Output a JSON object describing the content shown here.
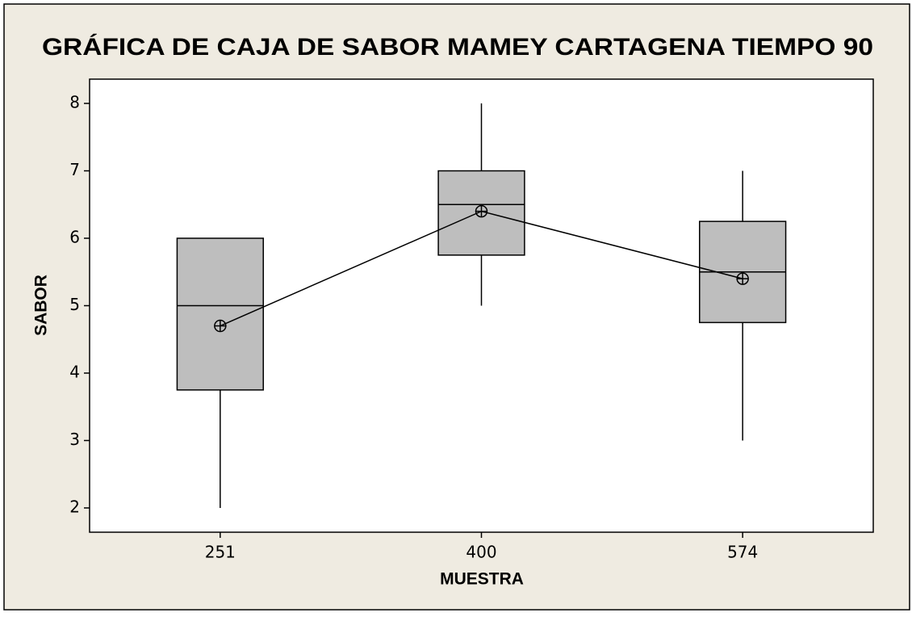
{
  "chart_data": {
    "type": "box",
    "title": "GRÁFICA DE CAJA DE SABOR MAMEY CARTAGENA TIEMPO 90",
    "x_label": "MUESTRA",
    "y_label": "SABOR",
    "categories": [
      "251",
      "400",
      "574"
    ],
    "series": [
      {
        "name": "SABOR",
        "color": "#bebebe",
        "min": [
          2,
          5,
          3
        ],
        "q1": [
          3.75,
          5.75,
          4.75
        ],
        "median": [
          5,
          6.5,
          5.5
        ],
        "q3": [
          6,
          7,
          6.25
        ],
        "max": [
          6,
          8,
          7
        ],
        "mean": [
          4.7,
          6.4,
          5.4
        ]
      }
    ],
    "ylim": [
      1.64,
      8.36
    ],
    "yticks": [
      2,
      3,
      4,
      5,
      6,
      7,
      8
    ],
    "grid": false
  }
}
